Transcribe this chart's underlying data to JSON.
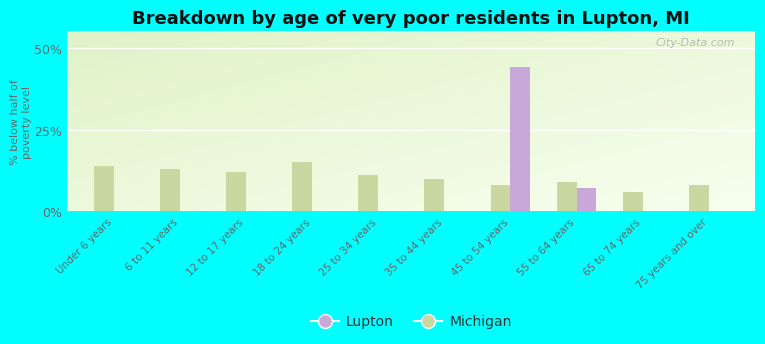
{
  "title": "Breakdown by age of very poor residents in Lupton, MI",
  "ylabel": "% below half of\npoverty level",
  "categories": [
    "Under 6 years",
    "6 to 11 years",
    "12 to 17 years",
    "18 to 24 years",
    "25 to 34 years",
    "35 to 44 years",
    "45 to 54 years",
    "55 to 64 years",
    "65 to 74 years",
    "75 years and over"
  ],
  "lupton_values": [
    0,
    0,
    0,
    0,
    0,
    0,
    44,
    7,
    0,
    0
  ],
  "michigan_values": [
    14,
    13,
    12,
    15,
    11,
    10,
    8,
    9,
    6,
    8
  ],
  "lupton_color": "#c8a8d8",
  "michigan_color": "#c8d8a0",
  "background_color": "#00ffff",
  "ylim": [
    0,
    55
  ],
  "yticks": [
    0,
    25,
    50
  ],
  "ytick_labels": [
    "0%",
    "25%",
    "50%"
  ],
  "bar_width": 0.3,
  "title_fontsize": 13,
  "watermark": "City-Data.com"
}
